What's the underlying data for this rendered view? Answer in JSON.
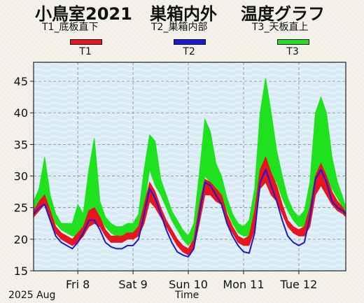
{
  "header": {
    "site": "小鳥室2021",
    "place": "巣箱内外",
    "graph": "温度グラフ"
  },
  "sensors": [
    {
      "key": "T1",
      "description": "T1_底板直下",
      "color": "#e8141e"
    },
    {
      "key": "T2",
      "description": "T2_巣箱内部",
      "color": "#1a1ad6"
    },
    {
      "key": "T3",
      "description": "T3_天板直上",
      "color": "#1ee21e"
    }
  ],
  "footer": {
    "period": "2025 Aug",
    "xlabel": "Time"
  },
  "chart_data": {
    "type": "area",
    "title": "",
    "xlabel": "Time",
    "ylabel": "",
    "ylim": [
      15,
      48
    ],
    "xlim": [
      7.2,
      12.85
    ],
    "yticks": [
      15,
      20,
      25,
      30,
      35,
      40,
      45
    ],
    "xticks": [
      {
        "day": 8,
        "label": "Fri 8"
      },
      {
        "day": 9,
        "label": "Sat 9"
      },
      {
        "day": 10,
        "label": "Sun 10"
      },
      {
        "day": 11,
        "label": "Mon 11"
      },
      {
        "day": 12,
        "label": "Tue 12"
      }
    ],
    "grid": true,
    "legend": "top",
    "series": [
      {
        "name": "T3",
        "color": "#1ee21e",
        "x": [
          7.2,
          7.3,
          7.4,
          7.5,
          7.6,
          7.7,
          7.8,
          7.9,
          8.0,
          8.1,
          8.2,
          8.3,
          8.4,
          8.5,
          8.6,
          8.7,
          8.8,
          8.9,
          9.0,
          9.1,
          9.2,
          9.3,
          9.4,
          9.5,
          9.6,
          9.7,
          9.8,
          9.9,
          10.0,
          10.1,
          10.2,
          10.3,
          10.4,
          10.5,
          10.6,
          10.7,
          10.8,
          10.9,
          11.0,
          11.1,
          11.2,
          11.3,
          11.4,
          11.5,
          11.6,
          11.7,
          11.8,
          11.9,
          12.0,
          12.1,
          12.2,
          12.3,
          12.4,
          12.5,
          12.6,
          12.7,
          12.8,
          12.85
        ],
        "min": [
          24.5,
          25.5,
          26.5,
          24.0,
          22.5,
          21.5,
          21.0,
          20.5,
          20.5,
          21.5,
          24.0,
          24.5,
          23.5,
          22.0,
          21.0,
          20.5,
          20.5,
          21.0,
          21.0,
          21.5,
          25.0,
          31.0,
          28.5,
          27.0,
          25.0,
          23.0,
          21.5,
          20.0,
          19.0,
          20.0,
          25.0,
          30.0,
          29.0,
          28.0,
          27.0,
          24.5,
          22.5,
          21.0,
          20.5,
          20.5,
          23.0,
          30.0,
          31.0,
          30.0,
          29.0,
          26.5,
          24.5,
          23.0,
          22.0,
          22.0,
          23.5,
          28.0,
          30.0,
          30.0,
          28.0,
          26.5,
          25.0,
          24.0
        ],
        "max": [
          26.0,
          28.0,
          33.0,
          27.0,
          24.0,
          22.5,
          22.5,
          22.5,
          25.5,
          24.0,
          31.0,
          36.0,
          26.0,
          23.5,
          22.5,
          22.0,
          22.0,
          22.5,
          22.5,
          24.0,
          31.0,
          36.5,
          35.5,
          29.5,
          27.0,
          24.5,
          23.0,
          21.5,
          20.5,
          22.5,
          30.5,
          39.0,
          37.0,
          32.0,
          30.0,
          26.5,
          24.0,
          22.5,
          22.0,
          23.0,
          28.0,
          40.0,
          45.5,
          40.0,
          34.0,
          30.0,
          26.5,
          24.5,
          23.5,
          24.5,
          29.0,
          40.0,
          42.5,
          40.0,
          33.0,
          29.0,
          26.5,
          25.0
        ]
      },
      {
        "name": "T1",
        "color": "#e8141e",
        "x": [
          7.2,
          7.3,
          7.4,
          7.5,
          7.6,
          7.7,
          7.8,
          7.9,
          8.0,
          8.1,
          8.2,
          8.3,
          8.4,
          8.5,
          8.6,
          8.7,
          8.8,
          8.9,
          9.0,
          9.1,
          9.2,
          9.3,
          9.4,
          9.5,
          9.6,
          9.7,
          9.8,
          9.9,
          10.0,
          10.1,
          10.2,
          10.3,
          10.4,
          10.5,
          10.6,
          10.7,
          10.8,
          10.9,
          11.0,
          11.1,
          11.2,
          11.3,
          11.4,
          11.5,
          11.6,
          11.7,
          11.8,
          11.9,
          12.0,
          12.1,
          12.2,
          12.3,
          12.4,
          12.5,
          12.6,
          12.7,
          12.8,
          12.85
        ],
        "min": [
          23.5,
          24.5,
          25.5,
          23.0,
          21.0,
          20.0,
          19.5,
          19.0,
          19.5,
          20.5,
          22.0,
          22.5,
          22.0,
          20.5,
          19.5,
          19.5,
          19.5,
          20.0,
          20.0,
          20.5,
          22.5,
          26.0,
          25.0,
          23.5,
          22.0,
          20.5,
          19.0,
          18.0,
          17.5,
          18.5,
          22.5,
          27.0,
          27.0,
          26.0,
          25.5,
          22.5,
          21.0,
          19.5,
          19.0,
          19.0,
          21.5,
          28.0,
          29.0,
          27.0,
          26.0,
          24.0,
          22.0,
          21.0,
          20.5,
          20.5,
          22.0,
          27.0,
          28.5,
          27.0,
          25.5,
          24.5,
          24.0,
          23.5
        ],
        "max": [
          24.5,
          26.0,
          27.0,
          24.5,
          22.0,
          21.0,
          20.5,
          20.0,
          21.0,
          22.0,
          24.5,
          25.0,
          23.5,
          21.5,
          20.5,
          20.5,
          20.5,
          21.0,
          21.0,
          22.0,
          25.5,
          29.0,
          27.5,
          25.0,
          23.0,
          21.5,
          20.0,
          19.0,
          18.5,
          20.0,
          25.5,
          29.5,
          29.0,
          28.0,
          27.0,
          24.0,
          22.0,
          20.5,
          20.0,
          20.5,
          24.5,
          31.0,
          33.0,
          30.5,
          28.5,
          25.5,
          23.0,
          22.0,
          21.5,
          22.0,
          25.0,
          30.0,
          32.0,
          30.0,
          27.5,
          26.0,
          25.0,
          24.0
        ]
      },
      {
        "name": "T2",
        "color": "#1a1ad6",
        "x": [
          7.2,
          7.3,
          7.4,
          7.5,
          7.6,
          7.7,
          7.8,
          7.9,
          8.0,
          8.1,
          8.2,
          8.3,
          8.4,
          8.5,
          8.6,
          8.7,
          8.8,
          8.9,
          9.0,
          9.1,
          9.2,
          9.3,
          9.4,
          9.5,
          9.6,
          9.7,
          9.8,
          9.9,
          10.0,
          10.1,
          10.2,
          10.3,
          10.4,
          10.5,
          10.6,
          10.7,
          10.8,
          10.9,
          11.0,
          11.1,
          11.2,
          11.3,
          11.4,
          11.5,
          11.6,
          11.7,
          11.8,
          11.9,
          12.0,
          12.1,
          12.2,
          12.3,
          12.4,
          12.5,
          12.6,
          12.7,
          12.8,
          12.85
        ],
        "values": [
          24.0,
          25.0,
          25.5,
          23.0,
          20.5,
          19.5,
          19.0,
          18.5,
          19.5,
          21.0,
          23.0,
          23.0,
          21.5,
          19.5,
          18.8,
          18.5,
          18.5,
          19.0,
          19.0,
          20.0,
          24.0,
          28.0,
          26.5,
          24.0,
          21.5,
          19.5,
          18.0,
          17.5,
          17.2,
          18.5,
          24.0,
          29.0,
          28.5,
          27.0,
          25.5,
          22.5,
          20.5,
          19.0,
          18.0,
          17.8,
          21.0,
          29.0,
          31.0,
          28.5,
          26.0,
          23.0,
          20.5,
          19.5,
          19.0,
          19.5,
          23.5,
          29.5,
          31.0,
          29.0,
          26.0,
          25.0,
          24.5,
          24.0
        ]
      }
    ]
  }
}
